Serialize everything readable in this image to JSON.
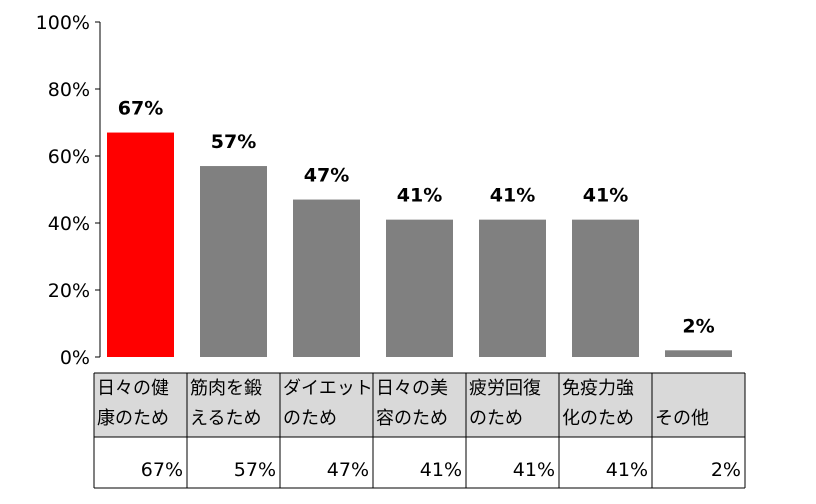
{
  "chart_data": {
    "type": "bar",
    "categories": [
      [
        "日々の健",
        "康のため"
      ],
      [
        "筋肉を鍛",
        "えるため"
      ],
      [
        "ダイエット",
        "のため"
      ],
      [
        "日々の美",
        "容のため"
      ],
      [
        "疲労回復",
        "のため"
      ],
      [
        "免疫力強",
        "化のため"
      ],
      [
        "",
        "その他"
      ]
    ],
    "values": [
      67,
      57,
      47,
      41,
      41,
      41,
      2
    ],
    "data_labels": [
      "67%",
      "57%",
      "47%",
      "41%",
      "41%",
      "41%",
      "2%"
    ],
    "table_values": [
      "67%",
      "57%",
      "47%",
      "41%",
      "41%",
      "41%",
      "2%"
    ],
    "ylim": [
      0,
      100
    ],
    "yticks": [
      "0%",
      "20%",
      "40%",
      "60%",
      "80%",
      "100%"
    ],
    "colors": {
      "highlight": "#ff0000",
      "bar": "#808080",
      "header_fill": "#d9d9d9",
      "table_border": "#000000"
    },
    "highlight_index": 0
  }
}
